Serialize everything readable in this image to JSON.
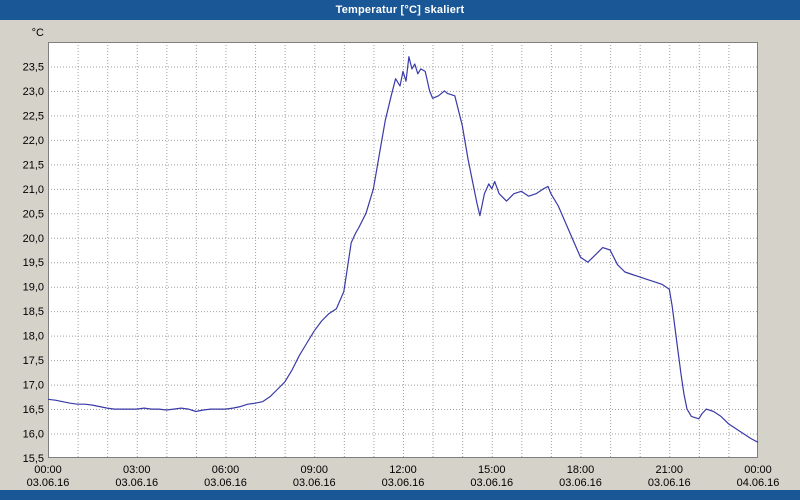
{
  "window": {
    "title": "Temperatur [°C] skaliert",
    "title_bar_color": "#1A5796",
    "background_color": "#d5d2ca"
  },
  "chart_data": {
    "type": "line",
    "title": "Temperatur [°C] skaliert",
    "ylabel": "°C",
    "xlabel": "",
    "ylim": [
      15.5,
      24.0
    ],
    "grid": "dotted, every 0.5 °C horizontal, every 1 h vertical",
    "legend": "none",
    "line_color": "#3A3AA8",
    "grid_color": "#A0A0A0",
    "plot_border_color": "#7F7F7F",
    "y_ticks": [
      [
        23.5,
        "23,5"
      ],
      [
        23.0,
        "23,0"
      ],
      [
        22.5,
        "22,5"
      ],
      [
        22.0,
        "22,0"
      ],
      [
        21.5,
        "21,5"
      ],
      [
        21.0,
        "21,0"
      ],
      [
        20.5,
        "20,5"
      ],
      [
        20.0,
        "20,0"
      ],
      [
        19.5,
        "19,5"
      ],
      [
        19.0,
        "19,0"
      ],
      [
        18.5,
        "18,5"
      ],
      [
        18.0,
        "18,0"
      ],
      [
        17.5,
        "17,5"
      ],
      [
        17.0,
        "17,0"
      ],
      [
        16.5,
        "16,5"
      ],
      [
        16.0,
        "16,0"
      ],
      [
        15.5,
        "15,5"
      ]
    ],
    "x_ticks": [
      {
        "hour": 0,
        "time": "00:00",
        "date": "03.06.16"
      },
      {
        "hour": 3,
        "time": "03:00",
        "date": "03.06.16"
      },
      {
        "hour": 6,
        "time": "06:00",
        "date": "03.06.16"
      },
      {
        "hour": 9,
        "time": "09:00",
        "date": "03.06.16"
      },
      {
        "hour": 12,
        "time": "12:00",
        "date": "03.06.16"
      },
      {
        "hour": 15,
        "time": "15:00",
        "date": "03.06.16"
      },
      {
        "hour": 18,
        "time": "18:00",
        "date": "03.06.16"
      },
      {
        "hour": 21,
        "time": "21:00",
        "date": "03.06.16"
      },
      {
        "hour": 24,
        "time": "00:00",
        "date": "04.06.16"
      }
    ],
    "series": [
      {
        "name": "Temperatur",
        "unit": "°C",
        "points": [
          [
            0,
            16.7
          ],
          [
            0.25,
            16.68
          ],
          [
            0.5,
            16.65
          ],
          [
            0.75,
            16.62
          ],
          [
            1,
            16.6
          ],
          [
            1.25,
            16.6
          ],
          [
            1.5,
            16.58
          ],
          [
            1.75,
            16.55
          ],
          [
            2,
            16.52
          ],
          [
            2.25,
            16.5
          ],
          [
            2.5,
            16.5
          ],
          [
            3,
            16.5
          ],
          [
            3.25,
            16.52
          ],
          [
            3.5,
            16.5
          ],
          [
            3.75,
            16.5
          ],
          [
            4,
            16.48
          ],
          [
            4.25,
            16.5
          ],
          [
            4.5,
            16.52
          ],
          [
            4.75,
            16.5
          ],
          [
            5,
            16.45
          ],
          [
            5.25,
            16.48
          ],
          [
            5.5,
            16.5
          ],
          [
            5.75,
            16.5
          ],
          [
            6,
            16.5
          ],
          [
            6.25,
            16.52
          ],
          [
            6.5,
            16.55
          ],
          [
            6.75,
            16.6
          ],
          [
            7,
            16.62
          ],
          [
            7.25,
            16.65
          ],
          [
            7.5,
            16.75
          ],
          [
            7.75,
            16.9
          ],
          [
            8,
            17.05
          ],
          [
            8.25,
            17.3
          ],
          [
            8.5,
            17.6
          ],
          [
            8.75,
            17.85
          ],
          [
            9,
            18.1
          ],
          [
            9.25,
            18.3
          ],
          [
            9.5,
            18.45
          ],
          [
            9.75,
            18.55
          ],
          [
            10,
            18.9
          ],
          [
            10.1,
            19.3
          ],
          [
            10.25,
            19.9
          ],
          [
            10.4,
            20.1
          ],
          [
            10.5,
            20.2
          ],
          [
            10.75,
            20.5
          ],
          [
            11,
            21.0
          ],
          [
            11.2,
            21.7
          ],
          [
            11.4,
            22.4
          ],
          [
            11.6,
            22.9
          ],
          [
            11.75,
            23.25
          ],
          [
            11.9,
            23.1
          ],
          [
            12,
            23.4
          ],
          [
            12.1,
            23.2
          ],
          [
            12.2,
            23.7
          ],
          [
            12.3,
            23.45
          ],
          [
            12.4,
            23.55
          ],
          [
            12.5,
            23.35
          ],
          [
            12.6,
            23.45
          ],
          [
            12.75,
            23.4
          ],
          [
            12.9,
            23.0
          ],
          [
            13,
            22.85
          ],
          [
            13.2,
            22.9
          ],
          [
            13.4,
            23.0
          ],
          [
            13.5,
            22.95
          ],
          [
            13.75,
            22.9
          ],
          [
            14,
            22.3
          ],
          [
            14.2,
            21.6
          ],
          [
            14.4,
            21.0
          ],
          [
            14.5,
            20.7
          ],
          [
            14.6,
            20.45
          ],
          [
            14.75,
            20.9
          ],
          [
            14.9,
            21.1
          ],
          [
            15,
            21.0
          ],
          [
            15.1,
            21.15
          ],
          [
            15.25,
            20.9
          ],
          [
            15.5,
            20.75
          ],
          [
            15.75,
            20.9
          ],
          [
            16,
            20.95
          ],
          [
            16.25,
            20.85
          ],
          [
            16.5,
            20.9
          ],
          [
            16.75,
            21.0
          ],
          [
            16.9,
            21.05
          ],
          [
            17,
            20.9
          ],
          [
            17.25,
            20.65
          ],
          [
            17.5,
            20.3
          ],
          [
            17.75,
            19.95
          ],
          [
            18,
            19.6
          ],
          [
            18.25,
            19.5
          ],
          [
            18.5,
            19.65
          ],
          [
            18.75,
            19.8
          ],
          [
            19,
            19.75
          ],
          [
            19.25,
            19.45
          ],
          [
            19.5,
            19.3
          ],
          [
            19.75,
            19.25
          ],
          [
            20,
            19.2
          ],
          [
            20.25,
            19.15
          ],
          [
            20.5,
            19.1
          ],
          [
            20.75,
            19.05
          ],
          [
            21,
            18.95
          ],
          [
            21.1,
            18.6
          ],
          [
            21.25,
            17.9
          ],
          [
            21.4,
            17.2
          ],
          [
            21.5,
            16.8
          ],
          [
            21.6,
            16.5
          ],
          [
            21.75,
            16.35
          ],
          [
            22,
            16.3
          ],
          [
            22.1,
            16.4
          ],
          [
            22.25,
            16.5
          ],
          [
            22.5,
            16.45
          ],
          [
            22.75,
            16.35
          ],
          [
            23,
            16.2
          ],
          [
            23.25,
            16.1
          ],
          [
            23.5,
            16.0
          ],
          [
            23.75,
            15.9
          ],
          [
            24,
            15.82
          ]
        ]
      }
    ]
  }
}
